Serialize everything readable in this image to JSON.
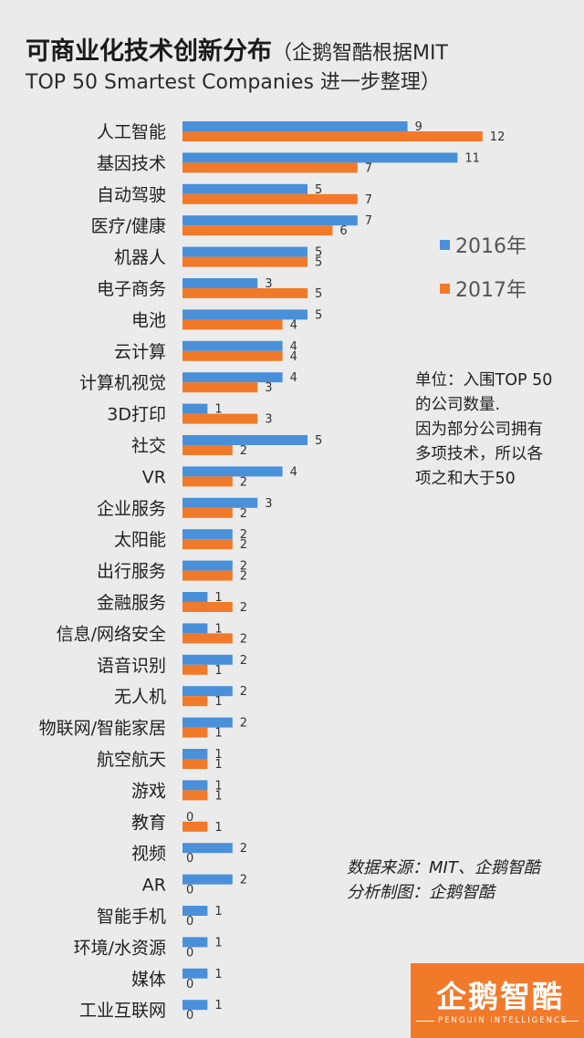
{
  "title": {
    "main": "可商业化技术创新分布",
    "sub": "（企鹅智酷根据MIT",
    "line2": "TOP 50 Smartest Companies 进一步整理）"
  },
  "legend": {
    "s2016": "2016年",
    "s2017": "2017年"
  },
  "note": [
    "单位：入围TOP 50",
    "的公司数量.",
    "因为部分公司拥有",
    "多项技术，所以各",
    "项之和大于50"
  ],
  "source": {
    "line1": "数据来源：MIT、企鹅智酷",
    "line2": "分析制图：企鹅智酷"
  },
  "logo": {
    "title": "企鹅智酷",
    "subtitle": "PENGUIN INTELLIGENCE"
  },
  "colors": {
    "s2016": "#4a90d9",
    "s2017": "#f07a2a",
    "background": "#ebebeb"
  },
  "chart_data": {
    "type": "bar",
    "orientation": "horizontal",
    "grid": false,
    "legend_position": "right",
    "categories": [
      "人工智能",
      "基因技术",
      "自动驾驶",
      "医疗/健康",
      "机器人",
      "电子商务",
      "电池",
      "云计算",
      "计算机视觉",
      "3D打印",
      "社交",
      "VR",
      "企业服务",
      "太阳能",
      "出行服务",
      "金融服务",
      "信息/网络安全",
      "语音识别",
      "无人机",
      "物联网/智能家居",
      "航空航天",
      "游戏",
      "教育",
      "视频",
      "AR",
      "智能手机",
      "环境/水资源",
      "媒体",
      "工业互联网"
    ],
    "series": [
      {
        "name": "2016年",
        "color": "#4a90d9",
        "values": [
          9,
          11,
          5,
          7,
          5,
          3,
          5,
          4,
          4,
          1,
          5,
          4,
          3,
          2,
          2,
          1,
          1,
          2,
          2,
          2,
          1,
          1,
          0,
          2,
          2,
          1,
          1,
          1,
          1
        ]
      },
      {
        "name": "2017年",
        "color": "#f07a2a",
        "values": [
          12,
          7,
          7,
          6,
          5,
          5,
          4,
          4,
          3,
          3,
          2,
          2,
          2,
          2,
          2,
          2,
          2,
          1,
          1,
          1,
          1,
          1,
          1,
          0,
          0,
          0,
          0,
          0,
          0
        ]
      }
    ],
    "xlim": [
      0,
      12
    ]
  }
}
